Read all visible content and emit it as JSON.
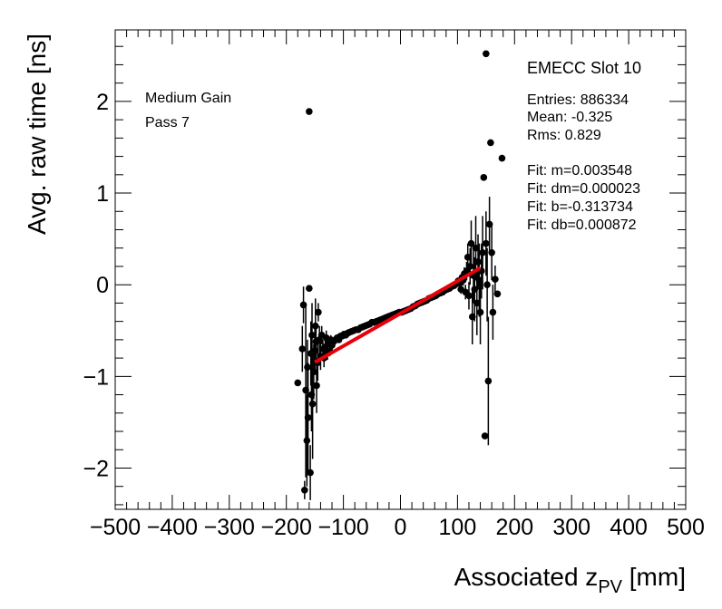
{
  "chart_data": {
    "type": "scatter",
    "title": "",
    "xlabel": "Associated z",
    "xlabel_sub": "PV",
    "xlabel_unit": " [mm]",
    "ylabel": "Avg. raw time [ns]",
    "xlim": [
      -500,
      500
    ],
    "ylim": [
      -2.45,
      2.78
    ],
    "x_ticks": [
      -500,
      -400,
      -300,
      -200,
      -100,
      0,
      100,
      200,
      300,
      400,
      500
    ],
    "x_tick_labels": [
      "−500",
      "−400",
      "−300",
      "−200",
      "−100",
      "0",
      "100",
      "200",
      "300",
      "400",
      "500"
    ],
    "y_ticks": [
      -2,
      -1,
      0,
      1,
      2
    ],
    "y_tick_labels": [
      "−2",
      "−1",
      "0",
      "1",
      "2"
    ],
    "left_annotations": [
      "Medium Gain",
      "Pass 7"
    ],
    "slot_label": "EMECC Slot 10",
    "stats": [
      "Entries: 886334",
      "Mean: -0.325",
      "Rms: 0.829"
    ],
    "fit_text": [
      "Fit: m=0.003548",
      "Fit: dm=0.000023",
      "Fit: b=-0.313734",
      "Fit: db=0.000872"
    ],
    "fit": {
      "m": 0.003548,
      "b": -0.313734,
      "x_range": [
        -150,
        140
      ],
      "color": "#e8000b"
    },
    "marker_color": "#000000",
    "points": [
      [
        -180,
        -1.07,
        0.0
      ],
      [
        -172,
        -0.7,
        0.25
      ],
      [
        -170,
        -0.22,
        0.2
      ],
      [
        -168,
        -2.24,
        0.1
      ],
      [
        -166,
        -1.15,
        0.95
      ],
      [
        -164,
        -1.7,
        0.5
      ],
      [
        -163,
        -0.9,
        0.3
      ],
      [
        -162,
        -1.45,
        0.6
      ],
      [
        -160,
        1.89,
        0.0
      ],
      [
        -160,
        -0.04,
        0.0
      ],
      [
        -158,
        -2.05,
        0.3
      ],
      [
        -157,
        -0.75,
        0.35
      ],
      [
        -156,
        -1.2,
        0.4
      ],
      [
        -155,
        -0.55,
        0.35
      ],
      [
        -154,
        -1.3,
        0.6
      ],
      [
        -152,
        -0.95,
        0.3
      ],
      [
        -150,
        -0.72,
        0.25
      ],
      [
        -149,
        -0.45,
        0.3
      ],
      [
        -148,
        -0.62,
        0.2
      ],
      [
        -147,
        -1.1,
        0.3
      ],
      [
        -145,
        -0.85,
        0.2
      ],
      [
        -144,
        -0.3,
        0.1
      ],
      [
        -142,
        -0.6,
        0.15
      ],
      [
        -140,
        -0.78,
        0.15
      ],
      [
        -138,
        -0.55,
        0.1
      ],
      [
        -136,
        -0.7,
        0.1
      ],
      [
        -134,
        -0.8,
        0.1
      ],
      [
        -132,
        -0.68,
        0.08
      ],
      [
        -130,
        -0.58,
        0.08
      ],
      [
        -128,
        -0.74,
        0.08
      ],
      [
        -126,
        -0.62,
        0.06
      ],
      [
        -124,
        -0.72,
        0.06
      ],
      [
        -122,
        -0.6,
        0.05
      ],
      [
        -120,
        -0.66,
        0.05
      ],
      [
        -117,
        -0.62,
        0.04
      ],
      [
        -114,
        -0.6,
        0.04
      ],
      [
        -111,
        -0.58,
        0.03
      ],
      [
        -108,
        -0.6,
        0.03
      ],
      [
        -105,
        -0.56,
        0.03
      ],
      [
        -102,
        -0.56,
        0.03
      ],
      [
        -99,
        -0.54,
        0.02
      ],
      [
        -96,
        -0.55,
        0.02
      ],
      [
        -93,
        -0.53,
        0.02
      ],
      [
        -90,
        -0.52,
        0.02
      ],
      [
        -86,
        -0.51,
        0.02
      ],
      [
        -82,
        -0.5,
        0.02
      ],
      [
        -78,
        -0.49,
        0.02
      ],
      [
        -74,
        -0.49,
        0.02
      ],
      [
        -70,
        -0.47,
        0.02
      ],
      [
        -66,
        -0.46,
        0.02
      ],
      [
        -62,
        -0.45,
        0.02
      ],
      [
        -58,
        -0.44,
        0.02
      ],
      [
        -54,
        -0.43,
        0.02
      ],
      [
        -50,
        -0.41,
        0.02
      ],
      [
        -46,
        -0.41,
        0.02
      ],
      [
        -42,
        -0.4,
        0.02
      ],
      [
        -38,
        -0.39,
        0.02
      ],
      [
        -34,
        -0.38,
        0.02
      ],
      [
        -30,
        -0.37,
        0.02
      ],
      [
        -26,
        -0.36,
        0.02
      ],
      [
        -22,
        -0.35,
        0.02
      ],
      [
        -18,
        -0.34,
        0.02
      ],
      [
        -14,
        -0.33,
        0.02
      ],
      [
        -10,
        -0.32,
        0.02
      ],
      [
        -6,
        -0.31,
        0.02
      ],
      [
        -2,
        -0.3,
        0.02
      ],
      [
        2,
        -0.3,
        0.02
      ],
      [
        6,
        -0.29,
        0.02
      ],
      [
        10,
        -0.28,
        0.02
      ],
      [
        14,
        -0.27,
        0.02
      ],
      [
        18,
        -0.26,
        0.02
      ],
      [
        22,
        -0.24,
        0.02
      ],
      [
        26,
        -0.23,
        0.02
      ],
      [
        30,
        -0.21,
        0.02
      ],
      [
        34,
        -0.2,
        0.02
      ],
      [
        38,
        -0.19,
        0.02
      ],
      [
        42,
        -0.18,
        0.02
      ],
      [
        46,
        -0.17,
        0.02
      ],
      [
        50,
        -0.15,
        0.02
      ],
      [
        54,
        -0.14,
        0.02
      ],
      [
        58,
        -0.13,
        0.02
      ],
      [
        62,
        -0.12,
        0.02
      ],
      [
        66,
        -0.1,
        0.02
      ],
      [
        70,
        -0.09,
        0.02
      ],
      [
        74,
        -0.08,
        0.02
      ],
      [
        78,
        -0.06,
        0.02
      ],
      [
        82,
        -0.05,
        0.03
      ],
      [
        86,
        -0.04,
        0.03
      ],
      [
        90,
        -0.02,
        0.03
      ],
      [
        94,
        -0.01,
        0.03
      ],
      [
        98,
        0.01,
        0.04
      ],
      [
        101,
        0.04,
        0.04
      ],
      [
        104,
        0.02,
        0.05
      ],
      [
        106,
        -0.05,
        0.05
      ],
      [
        108,
        0.08,
        0.06
      ],
      [
        110,
        0.05,
        0.06
      ],
      [
        112,
        0.12,
        0.07
      ],
      [
        114,
        -0.08,
        0.08
      ],
      [
        116,
        0.15,
        0.1
      ],
      [
        118,
        0.3,
        0.15
      ],
      [
        120,
        -0.12,
        0.15
      ],
      [
        122,
        0.2,
        0.2
      ],
      [
        124,
        0.45,
        0.25
      ],
      [
        126,
        -0.35,
        0.3
      ],
      [
        128,
        0.1,
        0.3
      ],
      [
        130,
        -0.05,
        0.35
      ],
      [
        132,
        0.4,
        0.35
      ],
      [
        134,
        -0.2,
        0.35
      ],
      [
        136,
        0.25,
        0.3
      ],
      [
        138,
        0.05,
        0.4
      ],
      [
        140,
        -0.3,
        0.35
      ],
      [
        142,
        0.15,
        0.3
      ],
      [
        144,
        0.35,
        0.4
      ],
      [
        146,
        1.17,
        0.0
      ],
      [
        148,
        -1.65,
        0.0
      ],
      [
        150,
        2.52,
        0.0
      ],
      [
        150,
        0.45,
        0.35
      ],
      [
        152,
        0.0,
        0.4
      ],
      [
        154,
        -1.05,
        0.7
      ],
      [
        156,
        0.66,
        0.3
      ],
      [
        158,
        1.55,
        0.0
      ],
      [
        160,
        0.35,
        0.3
      ],
      [
        162,
        -0.3,
        0.3
      ],
      [
        166,
        0.06,
        0.15
      ],
      [
        170,
        -0.1,
        0.0
      ],
      [
        178,
        1.38,
        0.0
      ]
    ]
  }
}
